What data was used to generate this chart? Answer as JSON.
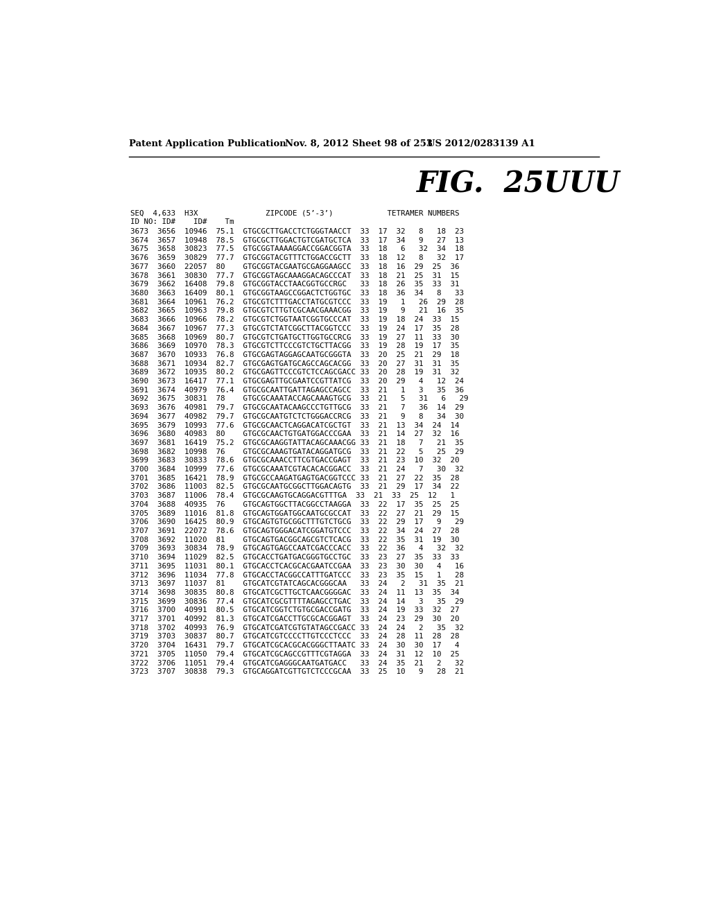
{
  "header_left": "Patent Application Publication",
  "header_date": "Nov. 8, 2012",
  "header_sheet": "Sheet 98 of 253",
  "header_right": "US 2012/0283139 A1",
  "fig_title": "FIG.  25UUU",
  "col_header1": "SEQ  4,633  H3X               ZIPCODE (5’-3’)            TETRAMER NUMBERS",
  "col_header2": "ID NO: ID#    ID#    Tm",
  "rows": [
    "3673  3656  10946  75.1  GTGCGCTTGACCTCTGGGTAACCT  33  17  32   8   18  23",
    "3674  3657  10948  78.5  GTGCGCTTGGACTGTCGATGCTCA  33  17  34   9   27  13",
    "3675  3658  30823  77.5  GTGCGGTAAAAGGACCGGACGGTA  33  18   6   32  34  18",
    "3676  3659  30829  77.7  GTGCGGTACGTTTCTGGACCGCTT  33  18  12   8   32  17",
    "3677  3660  22057  80    GTGCGGTACGAATGCGAGGAAGCC  33  18  16  29  25  36",
    "3678  3661  30830  77.7  GTGCGGTAGCAAAGGACAGCCCAT  33  18  21  25  31  15",
    "3679  3662  16408  79.8  GTGCGGTACCTAACGGTGCCRGC   33  18  26  35  33  31",
    "3680  3663  16409  80.1  GTGCGGTAAGCCGGACTCTGGTGC  33  18  36  34   8   33",
    "3681  3664  10961  76.2  GTGCGTCTTTGACCTATGCGTCCC  33  19   1   26  29  28",
    "3682  3665  10963  79.8  GTGCGTCTTGTCGCAACGAAACGG  33  19   9   21  16  35",
    "3683  3666  10966  78.2  GTGCGTCTGGTAATCGGTGCCCAT  33  19  18  24  33  15",
    "3684  3667  10967  77.3  GTGCGTCTATCGGCTTACGGTCCC  33  19  24  17  35  28",
    "3685  3668  10969  80.7  GTGCGTCTGATGCTTGGTGCCRCG  33  19  27  11  33  30",
    "3686  3669  10970  78.3  GTGCGTCTTCCCGTCTGCTTACGG  33  19  28  19  17  35",
    "3687  3670  10933  76.8  GTGCGAGTAGGAGCAATGCGGGTA  33  20  25  21  29  18",
    "3688  3671  10934  82.7  GTGCGAGTGATGCAGCCAGCACGG  33  20  27  31  31  35",
    "3689  3672  10935  80.2  GTGCGAGTTCCCGTCTCCAGCGACC 33  20  28  19  31  32",
    "3690  3673  16417  77.1  GTGCGAGTTGCGAATCCGTTATCG  33  20  29   4   12  24",
    "3691  3674  40979  76.4  GTGCGCAATTGATTAGAGCCAGCC  33  21   1   3   35  36",
    "3692  3675  30831  78    GTGCGCAAATACCAGCAAAGTGCG  33  21   5   31   6   29",
    "3693  3676  40981  79.7  GTGCGCAATACAAGCCCTGTTGCG  33  21   7   36  14  29",
    "3694  3677  40982  79.7  GTGCGCAATGTCTCTGGGACCRCG  33  21   9   8   34  30",
    "3695  3679  10993  77.6  GTGCGCAACTCAGGACATCGCTGT  33  21  13  34  24  14",
    "3696  3680  40983  80    GTGCGCAACTGTGATGGACCCGAA  33  21  14  27  32  16",
    "3697  3681  16419  75.2  GTGCGCAAGGTATTACAGCAAACGG 33  21  18   7   21  35",
    "3698  3682  10998  76    GTGCGCAAAGTGATACAGGATGCG  33  21  22   5   25  29",
    "3699  3683  30833  78.6  GTGCGCAAACCTTCGTGACCGAGT  33  21  23  10  32  20",
    "3700  3684  10999  77.6  GTGCGCAAATCGTACACACGGACC  33  21  24   7   30  32",
    "3701  3685  16421  78.9  GTGCGCCAAGATGAGTGACGGTCCC 33  21  27  22  35  28",
    "3702  3686  11003  82.5  GTGCGCAATGCGGCTTGGACAGTG  33  21  29  17  34  22",
    "3703  3687  11006  78.4  GTGCGCAAGTGCAGGACGTTTGA  33  21  33  25  12   1",
    "3704  3688  40935  76    GTGCAGTGGCTTACGGCCTAAGGA  33  22  17  35  25  25",
    "3705  3689  11016  81.8  GTGCAGTGGATGGCAATGCGCCAT  33  22  27  21  29  15",
    "3706  3690  16425  80.9  GTGCAGTGTGCGGCTTTGTCTGCG  33  22  29  17   9   29",
    "3707  3691  22072  78.6  GTGCAGTGGGACATCGGATGTCCC  33  22  34  24  27  28",
    "3708  3692  11020  81    GTGCAGTGACGGCAGCGTCTCACG  33  22  35  31  19  30",
    "3709  3693  30834  78.9  GTGCAGTGAGCCAATCGACCCACC  33  22  36   4   32  32",
    "3710  3694  11029  82.5  GTGCACCTGATGACGGGTGCCTGC  33  23  27  35  33  33",
    "3711  3695  11031  80.1  GTGCACCTCACGCACGAATCCGAA  33  23  30  30   4   16",
    "3712  3696  11034  77.8  GTGCACCTACGGCCATTTGATCCC  33  23  35  15   1   28",
    "3713  3697  11037  81    GTGCATCGTATCAGCACGGGCAA   33  24   2   31  35  21",
    "3714  3698  30835  80.8  GTGCATCGCTTGCTCAACGGGGAC  33  24  11  13  35  34",
    "3715  3699  30836  77.4  GTGCATCGCGTTTTAGAGCCTGAC  33  24  14   3   35  29",
    "3716  3700  40991  80.5  GTGCATCGGTCTGTGCGACCGATG  33  24  19  33  32  27",
    "3717  3701  40992  81.3  GTGCATCGACCTTGCGCACGGAGT  33  24  23  29  30  20",
    "3718  3702  40993  76.9  GTGCATCGATCGTGTATAGCCGACC 33  24  24   2   35  32",
    "3719  3703  30837  80.7  GTGCATCGTCCCCTTGTCCCTCCC  33  24  28  11  28  28",
    "3720  3704  16431  79.7  GTGCATCGCACGCACGGGCTTAATC 33  24  30  30  17   4",
    "3721  3705  11050  79.4  GTGCATCGCAGCCGTTTCGTAGGA  33  24  31  12  10  25",
    "3722  3706  11051  79.4  GTGCATCGAGGGCAATGATGACC   33  24  35  21   2   32",
    "3723  3707  30838  79.3  GTGCAGGATCGTTGTCTCCCGCAA  33  25  10   9   28  21"
  ]
}
